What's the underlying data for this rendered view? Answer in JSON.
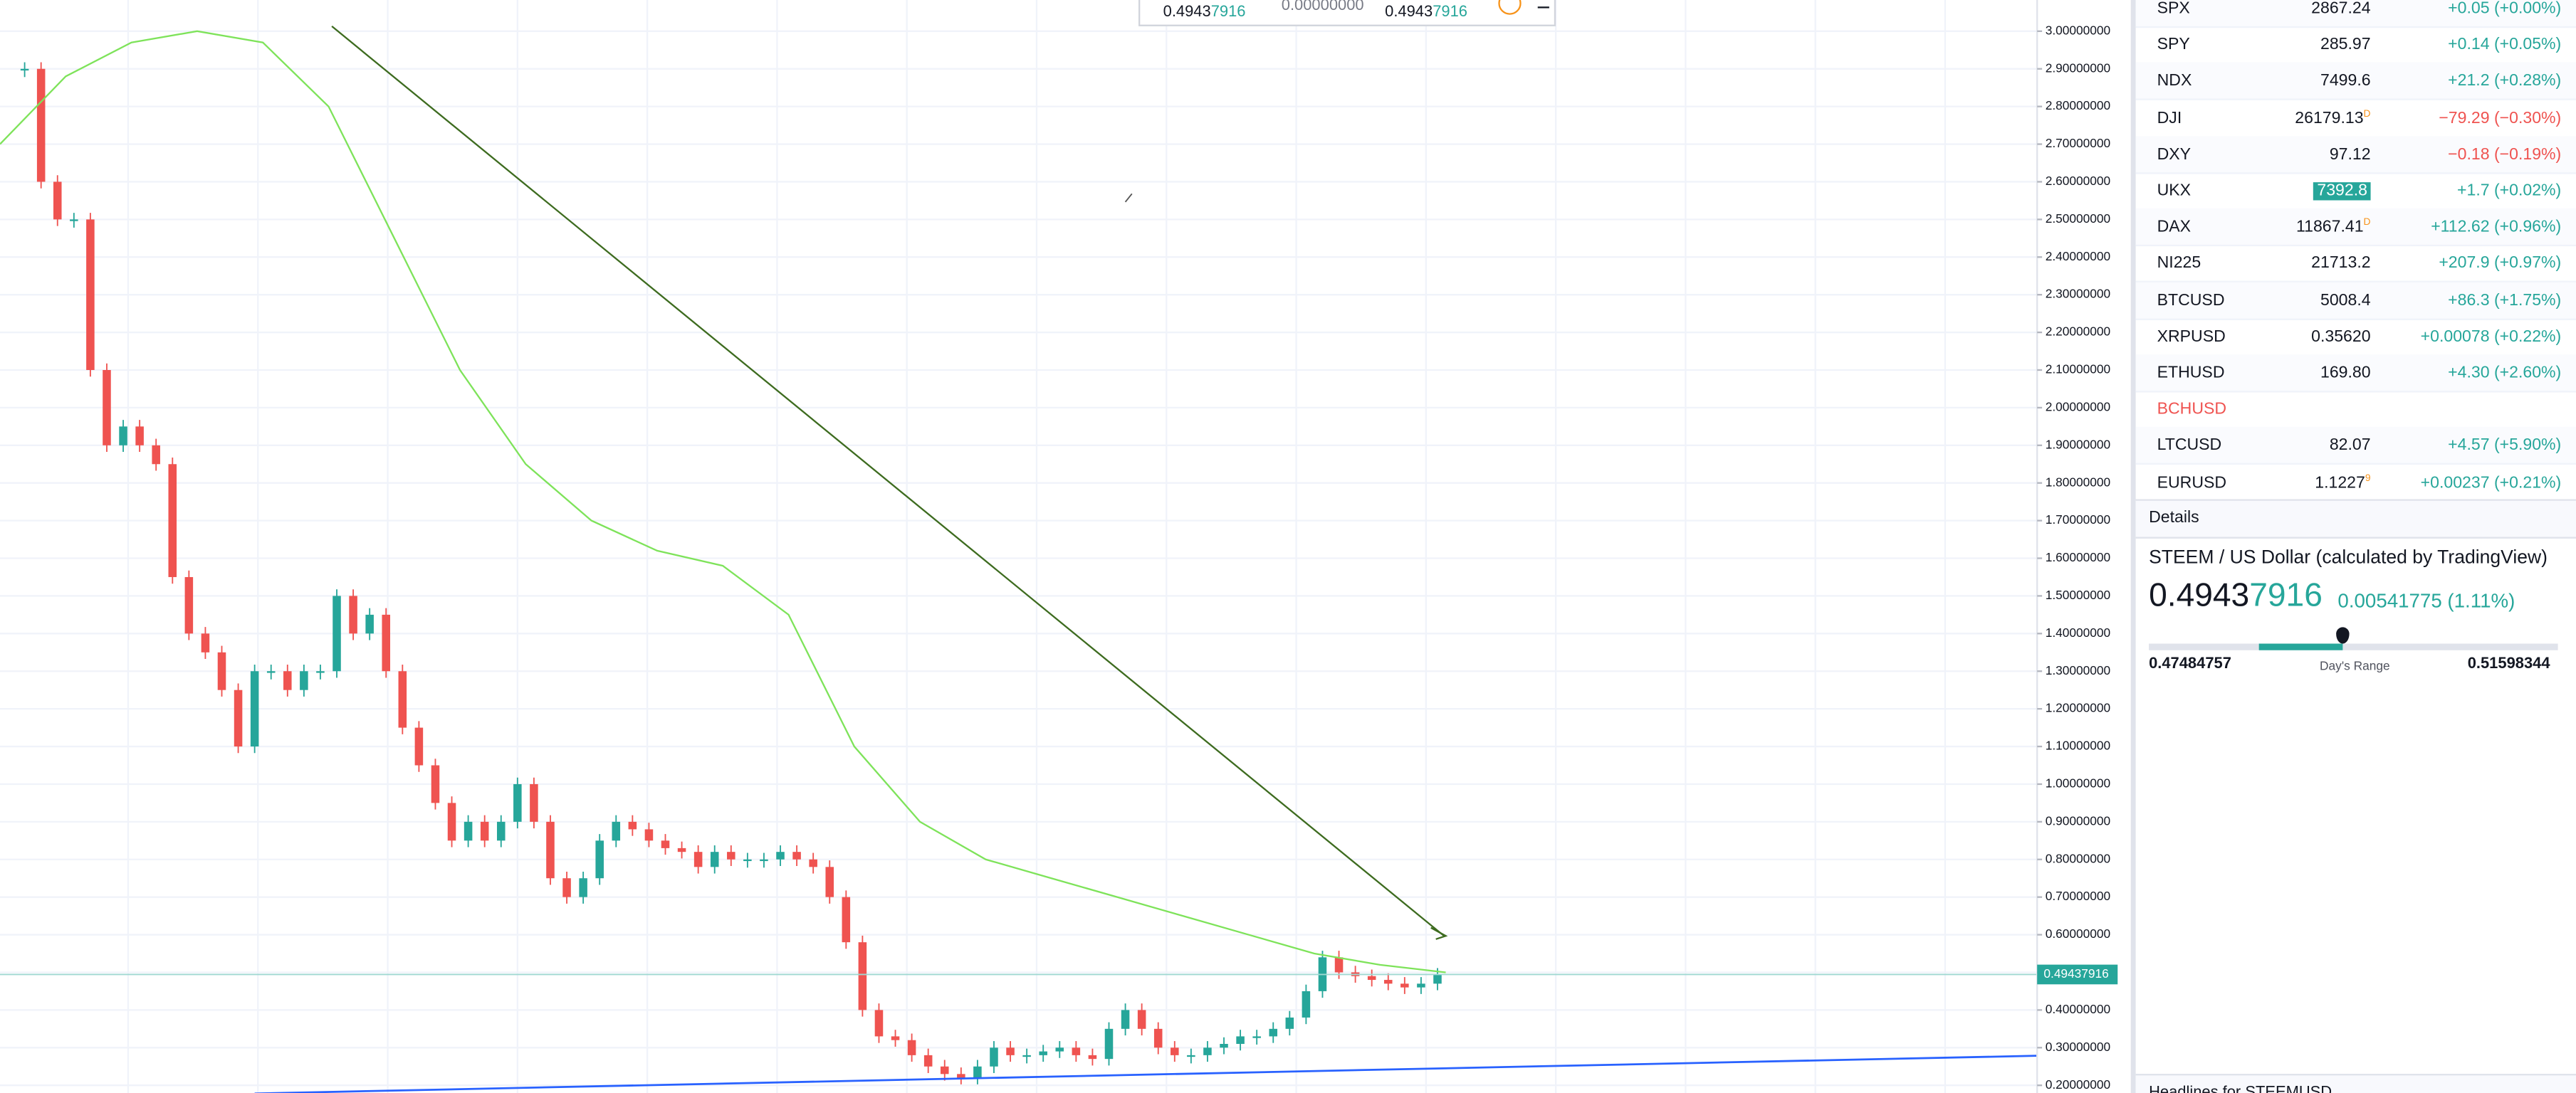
{
  "chart_data": {
    "type": "candlestick",
    "closes": [
      2.9,
      2.6,
      2.5,
      2.5,
      2.1,
      1.9,
      1.95,
      1.9,
      1.85,
      1.55,
      1.4,
      1.35,
      1.25,
      1.1,
      1.3,
      1.3,
      1.25,
      1.3,
      1.3,
      1.5,
      1.4,
      1.45,
      1.3,
      1.15,
      1.05,
      0.95,
      0.85,
      0.9,
      0.85,
      0.9,
      1.0,
      0.9,
      0.75,
      0.7,
      0.75,
      0.85,
      0.9,
      0.88,
      0.85,
      0.83,
      0.82,
      0.78,
      0.82,
      0.8,
      0.8,
      0.8,
      0.82,
      0.8,
      0.78,
      0.7,
      0.58,
      0.4,
      0.33,
      0.32,
      0.28,
      0.25,
      0.23,
      0.22,
      0.25,
      0.3,
      0.28,
      0.28,
      0.29,
      0.3,
      0.28,
      0.27,
      0.35,
      0.4,
      0.35,
      0.3,
      0.28,
      0.28,
      0.3,
      0.31,
      0.33,
      0.33,
      0.35,
      0.38,
      0.45,
      0.54,
      0.5,
      0.49,
      0.48,
      0.47,
      0.46,
      0.47,
      0.494
    ],
    "up_color": "#26a69a",
    "down_color": "#ef5350",
    "ma_values": [
      2.7,
      2.88,
      2.97,
      3.0,
      2.97,
      2.8,
      2.45,
      2.1,
      1.85,
      1.7,
      1.62,
      1.58,
      1.45,
      1.1,
      0.9,
      0.8,
      0.75,
      0.7,
      0.65,
      0.6,
      0.55,
      0.52,
      0.5
    ],
    "ma_color": "#7ee35a",
    "ylim": [
      0.2,
      3.0
    ],
    "yticks": [
      {
        "value": 0.2,
        "label": "0.20000000"
      },
      {
        "value": 0.3,
        "label": "0.30000000"
      },
      {
        "value": 0.4,
        "label": "0.40000000"
      },
      {
        "value": 0.5,
        "label": "0.50000000"
      },
      {
        "value": 0.6,
        "label": "0.60000000"
      },
      {
        "value": 0.7,
        "label": "0.70000000"
      },
      {
        "value": 0.8,
        "label": "0.80000000"
      },
      {
        "value": 0.9,
        "label": "0.90000000"
      },
      {
        "value": 1.0,
        "label": "1.00000000"
      },
      {
        "value": 1.1,
        "label": "1.10000000"
      },
      {
        "value": 1.2,
        "label": "1.20000000"
      },
      {
        "value": 1.3,
        "label": "1.30000000"
      },
      {
        "value": 1.4,
        "label": "1.40000000"
      },
      {
        "value": 1.5,
        "label": "1.50000000"
      },
      {
        "value": 1.6,
        "label": "1.60000000"
      },
      {
        "value": 1.7,
        "label": "1.70000000"
      },
      {
        "value": 1.8,
        "label": "1.80000000"
      },
      {
        "value": 1.9,
        "label": "1.90000000"
      },
      {
        "value": 2.0,
        "label": "2.00000000"
      },
      {
        "value": 2.1,
        "label": "2.10000000"
      },
      {
        "value": 2.2,
        "label": "2.20000000"
      },
      {
        "value": 2.3,
        "label": "2.30000000"
      },
      {
        "value": 2.4,
        "label": "2.40000000"
      },
      {
        "value": 2.5,
        "label": "2.50000000"
      },
      {
        "value": 2.6,
        "label": "2.60000000"
      },
      {
        "value": 2.7,
        "label": "2.70000000"
      },
      {
        "value": 2.8,
        "label": "2.80000000"
      },
      {
        "value": 2.9,
        "label": "2.90000000"
      },
      {
        "value": 3.0,
        "label": "3.00000000"
      }
    ],
    "grid": true,
    "last_price": {
      "value": 0.49437916,
      "label": "0.49437916"
    }
  },
  "toolbar": {
    "open": [
      "0.4943",
      "7916"
    ],
    "change": "0.00000000",
    "close": [
      "0.4943",
      "7916"
    ]
  },
  "watchlist": [
    {
      "symbol": "SPX",
      "last": "2867.24",
      "change": "+0.05 (+0.00%)",
      "color": "#26a69a"
    },
    {
      "symbol": "SPY",
      "last": "285.97",
      "change": "+0.14 (+0.05%)",
      "color": "#26a69a"
    },
    {
      "symbol": "NDX",
      "last": "7499.6",
      "change": "+21.2 (+0.28%)",
      "color": "#26a69a"
    },
    {
      "symbol": "DJI",
      "last": "26179.13",
      "flag": "D",
      "change": "−79.29 (−0.30%)",
      "color": "#ef5350"
    },
    {
      "symbol": "DXY",
      "last": "97.12",
      "change": "−0.18 (−0.19%)",
      "color": "#ef5350"
    },
    {
      "symbol": "UKX",
      "last": "7392.8",
      "change": "+1.7 (+0.02%)",
      "color": "#26a69a",
      "highlight": true
    },
    {
      "symbol": "DAX",
      "last": "11867.41",
      "flag": "D",
      "change": "+112.62 (+0.96%)",
      "color": "#26a69a"
    },
    {
      "symbol": "NI225",
      "last": "21713.2",
      "change": "+207.9 (+0.97%)",
      "color": "#26a69a"
    },
    {
      "symbol": "BTCUSD",
      "last": "5008.4",
      "change": "+86.3 (+1.75%)",
      "color": "#26a69a"
    },
    {
      "symbol": "XRPUSD",
      "last": "0.35620",
      "change": "+0.00078 (+0.22%)",
      "color": "#26a69a"
    },
    {
      "symbol": "ETHUSD",
      "last": "169.80",
      "change": "+4.30 (+2.60%)",
      "color": "#26a69a"
    },
    {
      "symbol": "BCHUSD",
      "color": "#ef5350"
    },
    {
      "symbol": "LTCUSD",
      "last": "82.07",
      "change": "+4.57 (+5.90%)",
      "color": "#26a69a"
    },
    {
      "symbol": "EURUSD",
      "last": "1.1227",
      "flag": "9",
      "change": "+0.00237 (+0.21%)",
      "color": "#26a69a"
    }
  ],
  "details": {
    "tab": "Details",
    "name": "STEEM / US Dollar (calculated by TradingView)",
    "price": [
      "0.4943",
      "7916"
    ],
    "change": "0.00541775 (1.11%)",
    "range": {
      "low": 0.47484757,
      "label": "Day's Range",
      "high": 0.51598344
    },
    "headlines": "Headlines for STEEMUSD"
  }
}
